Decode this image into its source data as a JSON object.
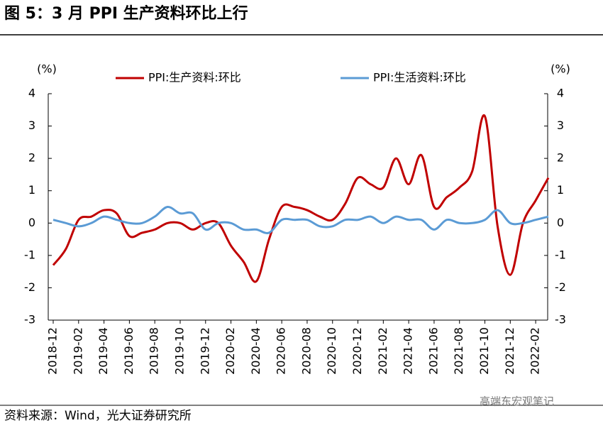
{
  "title": "图 5：3 月 PPI 生产资料环比上行",
  "source": "资料来源：Wind，光大证券研究所",
  "watermark": "高端东宏观笔记",
  "chart_data": {
    "type": "line",
    "ylabel": "(%)",
    "y2label": "(%)",
    "categories": [
      "2018-12",
      null,
      "2019-02",
      null,
      "2019-04",
      null,
      "2019-06",
      null,
      "2019-08",
      null,
      "2019-10",
      null,
      "2019-12",
      null,
      "2020-02",
      null,
      "2020-04",
      null,
      "2020-06",
      null,
      "2020-08",
      null,
      "2020-10",
      null,
      "2020-12",
      null,
      "2021-02",
      null,
      "2021-04",
      null,
      "2021-06",
      null,
      "2021-08",
      null,
      "2021-10",
      null,
      "2021-12",
      null,
      "2022-02",
      null
    ],
    "series": [
      {
        "name": "PPI:生产资料:环比",
        "color": "#c00000",
        "values": [
          -1.3,
          -0.8,
          0.1,
          0.2,
          0.4,
          0.3,
          -0.4,
          -0.3,
          -0.2,
          0.0,
          0.0,
          -0.2,
          0.0,
          0.0,
          -0.7,
          -1.2,
          -1.8,
          -0.5,
          0.5,
          0.5,
          0.4,
          0.2,
          0.1,
          0.6,
          1.4,
          1.2,
          1.1,
          2.0,
          1.2,
          2.1,
          0.5,
          0.8,
          1.1,
          1.6,
          3.3,
          -0.1,
          -1.6,
          0.0,
          0.7,
          1.4
        ]
      },
      {
        "name": "PPI:生活资料:环比",
        "color": "#5b9bd5",
        "values": [
          0.1,
          0.0,
          -0.1,
          0.0,
          0.2,
          0.1,
          0.0,
          0.0,
          0.2,
          0.5,
          0.3,
          0.3,
          -0.2,
          0.0,
          0.0,
          -0.2,
          -0.2,
          -0.3,
          0.1,
          0.1,
          0.1,
          -0.1,
          -0.1,
          0.1,
          0.1,
          0.2,
          0.0,
          0.2,
          0.1,
          0.1,
          -0.2,
          0.1,
          0.0,
          0.0,
          0.1,
          0.4,
          0.0,
          0.0,
          0.1,
          0.2
        ]
      }
    ],
    "ylim": [
      -3,
      4
    ],
    "yticks": [
      -3,
      -2,
      -1,
      0,
      1,
      2,
      3,
      4
    ],
    "y2lim": [
      -3,
      4
    ],
    "y2ticks": [
      -3,
      -2,
      -1,
      0,
      1,
      2,
      3,
      4
    ],
    "legend": "top"
  }
}
